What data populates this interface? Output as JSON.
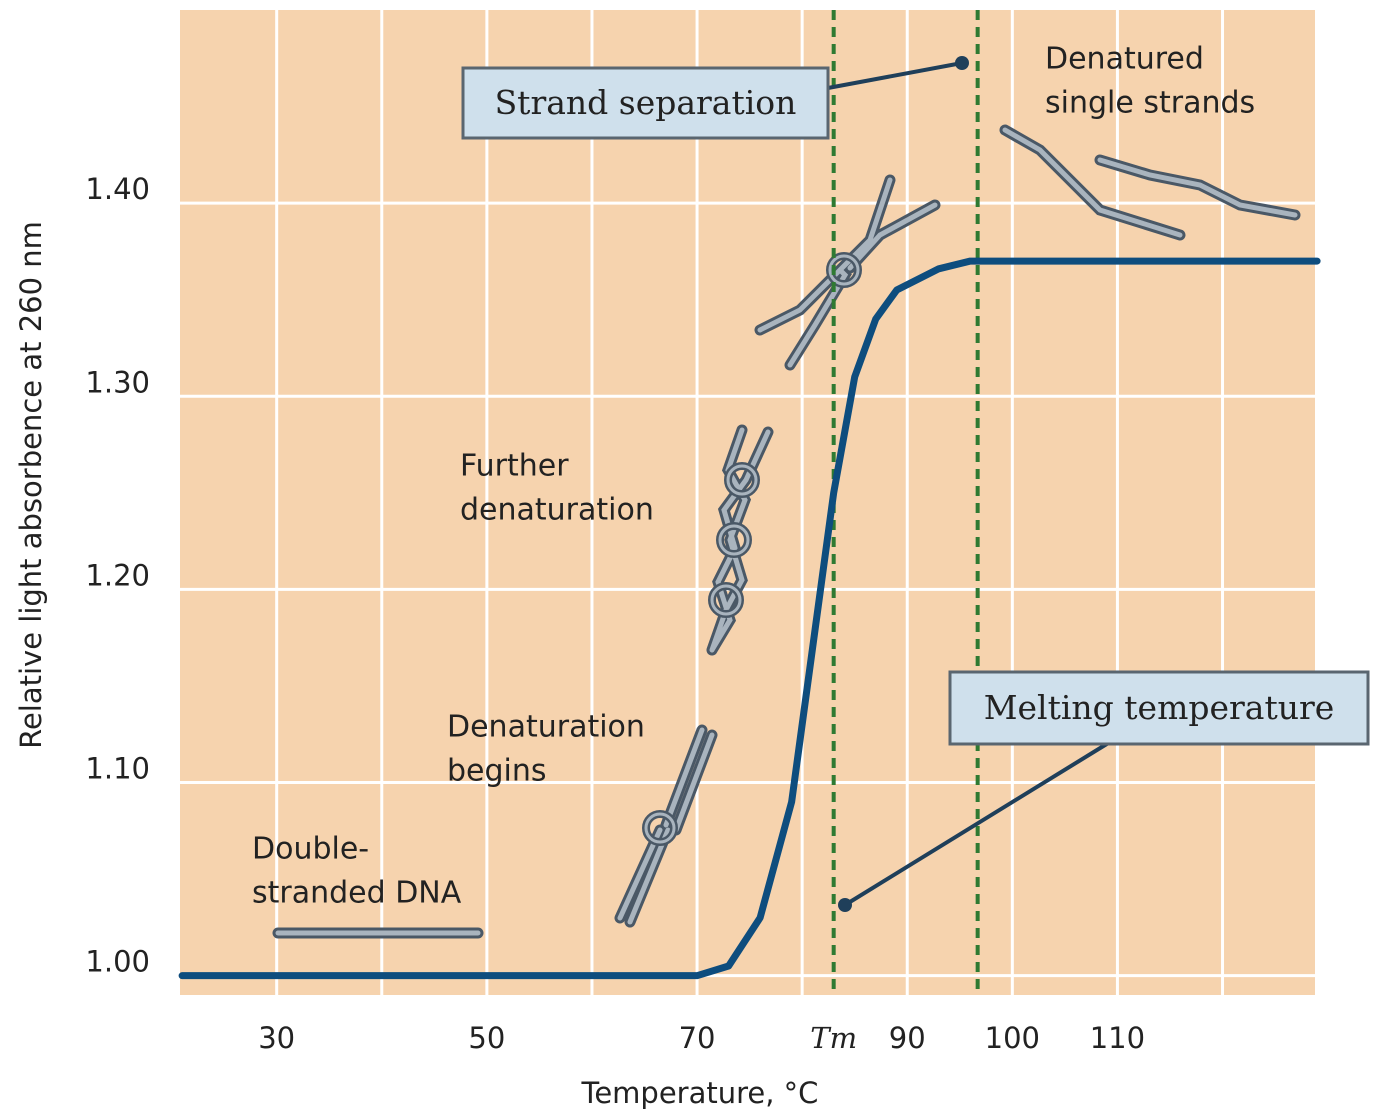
{
  "chart_data": {
    "type": "line",
    "x_label": "Temperature, °C",
    "y_label": "Relative light absorbence at 260 nm",
    "x": [
      21,
      70,
      73,
      76,
      79,
      81,
      83,
      85,
      87,
      89,
      93,
      96,
      129
    ],
    "series": [
      {
        "color": "#0e4d7e",
        "values": [
          1.0,
          1.0,
          1.005,
          1.03,
          1.09,
          1.17,
          1.25,
          1.31,
          1.34,
          1.355,
          1.366,
          1.37,
          1.37
        ]
      }
    ],
    "xlim": [
      20.8,
      128.8
    ],
    "ylim": [
      0.99,
      1.5
    ],
    "xticks": [
      30,
      50,
      70,
      {
        "value": 83,
        "label": "Tm"
      },
      90,
      100,
      110
    ],
    "yticks": [
      {
        "value": 1,
        "label": "1.00"
      },
      {
        "value": 1.1,
        "label": "1.10"
      },
      {
        "value": 1.2,
        "label": "1.20"
      },
      {
        "value": 1.3,
        "label": "1.30"
      },
      {
        "value": 1.4,
        "label": "1.40"
      }
    ],
    "xgrid": [
      30,
      40,
      50,
      60,
      70,
      80,
      90,
      100,
      110,
      120
    ],
    "grid": true,
    "background": "#f6d3ae",
    "vlines": [
      83,
      96.7
    ],
    "vline_color": "#2f7a32",
    "annotations": [
      [
        "Double-",
        "stranded DNA"
      ],
      [
        "Denaturation",
        "begins"
      ],
      [
        "Further",
        "denaturation"
      ],
      [
        "Denatured",
        "single strands"
      ]
    ],
    "callouts": [
      "Strand separation",
      "Melting temperature"
    ]
  }
}
